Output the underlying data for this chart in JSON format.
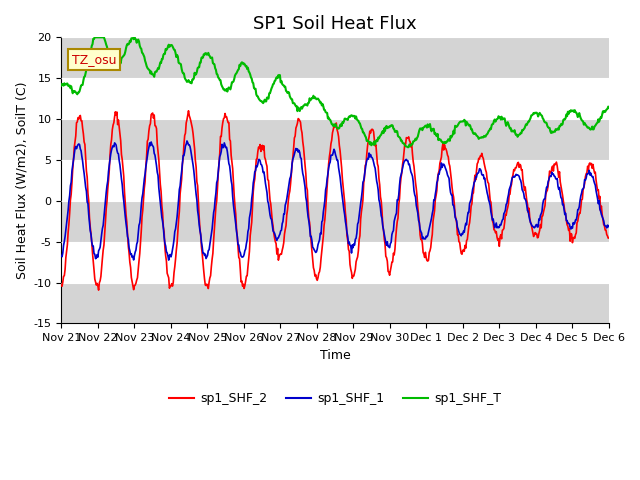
{
  "title": "SP1 Soil Heat Flux",
  "xlabel": "Time",
  "ylabel": "Soil Heat Flux (W/m2), SoilT (C)",
  "ylim": [
    -15,
    20
  ],
  "n_days": 15,
  "xtick_labels": [
    "Nov 21",
    "Nov 22",
    "Nov 23",
    "Nov 24",
    "Nov 25",
    "Nov 26",
    "Nov 27",
    "Nov 28",
    "Nov 29",
    "Nov 30",
    "Dec 1",
    "Dec 2",
    "Dec 3",
    "Dec 4",
    "Dec 5",
    "Dec 6"
  ],
  "yticks": [
    -15,
    -10,
    -5,
    0,
    5,
    10,
    15,
    20
  ],
  "color_shf2": "#ff0000",
  "color_shf1": "#0000cc",
  "color_shft": "#00bb00",
  "legend_labels": [
    "sp1_SHF_2",
    "sp1_SHF_1",
    "sp1_SHF_T"
  ],
  "tz_label": "TZ_osu",
  "bg_color": "#ffffff",
  "band1_color": "#d4d4d4",
  "band2_color": "#ffffff",
  "title_fontsize": 13,
  "label_fontsize": 9,
  "tick_fontsize": 8
}
